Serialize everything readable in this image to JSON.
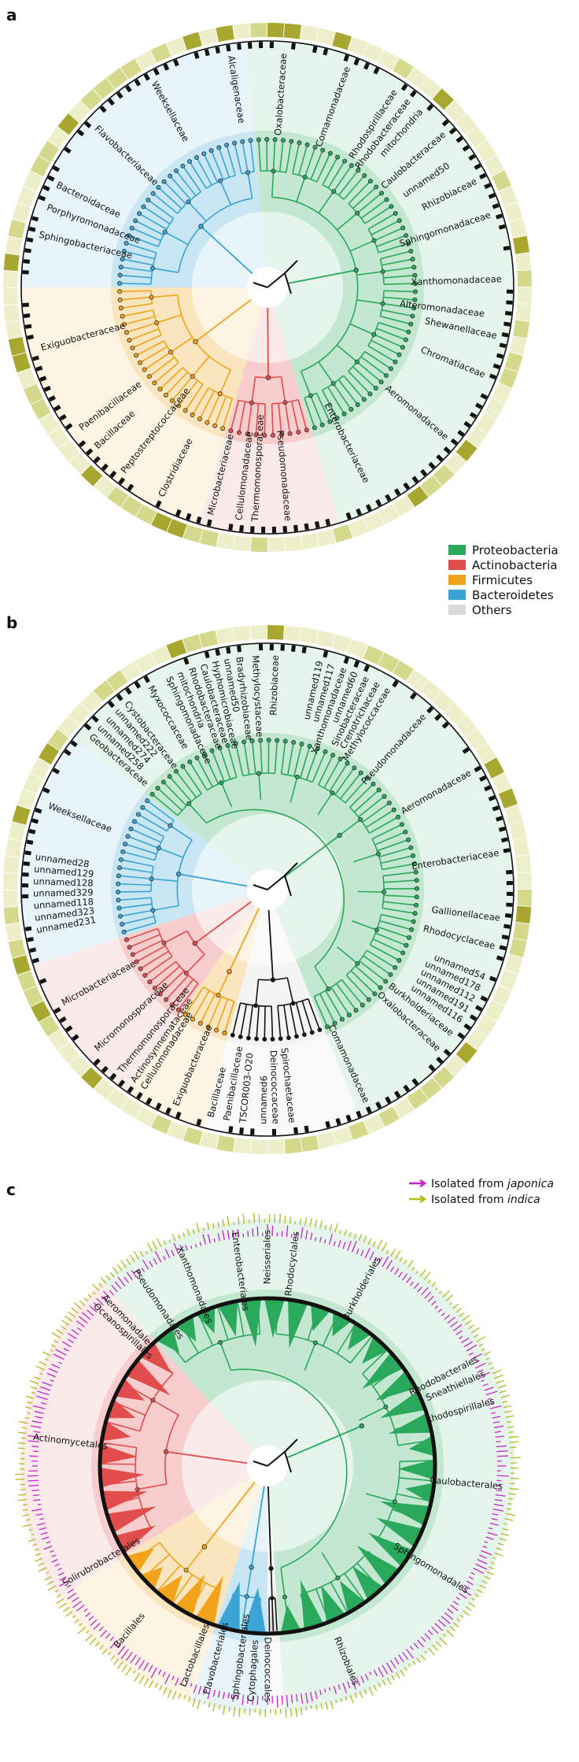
{
  "colors": {
    "Proteobacteria": "#2aa85c",
    "Actinobacteria": "#e14c4c",
    "Firmicutes": "#f2a31a",
    "Bacteroidetes": "#3aa4d4",
    "Others": "#d9d9d9",
    "japonica": "#cc22cc",
    "indica": "#b8b820",
    "ring_dark": "#a8a830",
    "ring_light": "#ecefc9"
  },
  "legend": {
    "items": [
      {
        "label": "Proteobacteria",
        "color": "#2aa85c"
      },
      {
        "label": "Actinobacteria",
        "color": "#e14c4c"
      },
      {
        "label": "Firmicutes",
        "color": "#f2a31a"
      },
      {
        "label": "Bacteroidetes",
        "color": "#3aa4d4"
      },
      {
        "label": "Others",
        "color": "#d9d9d9"
      }
    ]
  },
  "legend_c": {
    "prefix": "Isolated from ",
    "items": [
      {
        "label": "japonica",
        "color": "#cc22cc"
      },
      {
        "label": "indica",
        "color": "#b8b820"
      }
    ]
  },
  "panels": [
    {
      "letter": "a",
      "sectors": [
        {
          "phylum": "Proteobacteria",
          "start": -5,
          "end": 163
        },
        {
          "phylum": "Actinobacteria",
          "start": 163,
          "end": 196
        },
        {
          "phylum": "Firmicutes",
          "start": 196,
          "end": 270
        },
        {
          "phylum": "Bacteroidetes",
          "start": 270,
          "end": 355
        }
      ],
      "labels": [
        {
          "text": "Oxalobacteraceae",
          "angle": 4
        },
        {
          "text": "Comamonadaceae",
          "angle": 20
        },
        {
          "text": "Rhodospirillaceae",
          "angle": 33
        },
        {
          "text": "Rhodobacteraceae",
          "angle": 37
        },
        {
          "text": "mitochondria",
          "angle": 41
        },
        {
          "text": "Caulobacteraceae",
          "angle": 49
        },
        {
          "text": "unnamed50",
          "angle": 56
        },
        {
          "text": "Rhizobiaceae",
          "angle": 63
        },
        {
          "text": "Sphingomonadaceae",
          "angle": 72
        },
        {
          "text": "Xanthomonadaceae",
          "angle": 88
        },
        {
          "text": "Alteromonadaceae",
          "angle": 97
        },
        {
          "text": "Shewanellaceae",
          "angle": 102
        },
        {
          "text": "Chromatiaceae",
          "angle": 112
        },
        {
          "text": "Aeromonadaceae",
          "angle": 130
        },
        {
          "text": "Enterobacteriaceae",
          "angle": 153
        },
        {
          "text": "Pseudomonadaceae",
          "angle": 175
        },
        {
          "text": "Thermomonosporaceae",
          "angle": 183
        },
        {
          "text": "Cellulomonadaceae",
          "angle": 187
        },
        {
          "text": "Microbacteriaceae",
          "angle": 194
        },
        {
          "text": "Clostridiaceae",
          "angle": 207
        },
        {
          "text": "Peptostreptococcaceae",
          "angle": 218
        },
        {
          "text": "Bacillaceae",
          "angle": 227
        },
        {
          "text": "Paenibacillaceae",
          "angle": 233
        },
        {
          "text": "Exiguobacteraceae",
          "angle": 255
        },
        {
          "text": "Sphingobacteriaceae",
          "angle": 283
        },
        {
          "text": "Porphyromonadaceae",
          "angle": 290
        },
        {
          "text": "Bacteroidaceae",
          "angle": 296
        },
        {
          "text": "Flavobacteriaceae",
          "angle": 313
        },
        {
          "text": "Weeksellaceae",
          "angle": 331
        },
        {
          "text": "Alcaligenaceae",
          "angle": 351
        }
      ]
    },
    {
      "letter": "b",
      "sectors": [
        {
          "phylum": "Proteobacteria",
          "start": -52,
          "end": 158
        },
        {
          "phylum": "Others",
          "start": 158,
          "end": 195
        },
        {
          "phylum": "Firmicutes",
          "start": 195,
          "end": 215
        },
        {
          "phylum": "Actinobacteria",
          "start": 215,
          "end": 252
        },
        {
          "phylum": "Bacteroidetes",
          "start": 252,
          "end": 308
        }
      ],
      "labels": [
        {
          "text": "Rhizobiaceae",
          "angle": 2
        },
        {
          "text": "unnamed119",
          "angle": 13
        },
        {
          "text": "unnamed117",
          "angle": 16
        },
        {
          "text": "Xanthomonadaceae",
          "angle": 19
        },
        {
          "text": "unnamed60",
          "angle": 22
        },
        {
          "text": "Sinobacteraceae",
          "angle": 25
        },
        {
          "text": "Crenotrichaceae",
          "angle": 28
        },
        {
          "text": "Methylococcaceae",
          "angle": 31
        },
        {
          "text": "Pseudomonadaceae",
          "angle": 42
        },
        {
          "text": "Aeromonadaceae",
          "angle": 60
        },
        {
          "text": "Enterobacteriaceae",
          "angle": 81
        },
        {
          "text": "Gallionellaceae",
          "angle": 97
        },
        {
          "text": "Rhodocyclaceae",
          "angle": 104
        },
        {
          "text": "unnamed54",
          "angle": 112
        },
        {
          "text": "unnamed178",
          "angle": 115
        },
        {
          "text": "unnamed112",
          "angle": 118
        },
        {
          "text": "unnamed191",
          "angle": 121
        },
        {
          "text": "unnamed116",
          "angle": 124
        },
        {
          "text": "Burkholderiaceae",
          "angle": 128
        },
        {
          "text": "Oxalobacteraceae",
          "angle": 133
        },
        {
          "text": "Comamonadaceae",
          "angle": 155
        },
        {
          "text": "Spirochaetaceae",
          "angle": 174
        },
        {
          "text": "Deinococcaceae",
          "angle": 178
        },
        {
          "text": "unnamed6",
          "angle": 181
        },
        {
          "text": "TSCOR003-O20",
          "angle": 186
        },
        {
          "text": "Paenibacillaceae",
          "angle": 190
        },
        {
          "text": "Bacillaceae",
          "angle": 194
        },
        {
          "text": "Exiguobacteraceae",
          "angle": 203
        },
        {
          "text": "Cellulomonadaceae",
          "angle": 212
        },
        {
          "text": "Actinosynnemataceae",
          "angle": 215
        },
        {
          "text": "Thermomonosporaceae",
          "angle": 219
        },
        {
          "text": "Micromonosporaceae",
          "angle": 227
        },
        {
          "text": "Microbacteriaceae",
          "angle": 241
        },
        {
          "text": "unnamed231",
          "angle": 260
        },
        {
          "text": "unnamed323",
          "angle": 263
        },
        {
          "text": "unnamed118",
          "angle": 266
        },
        {
          "text": "unnamed329",
          "angle": 269
        },
        {
          "text": "unnamed128",
          "angle": 272
        },
        {
          "text": "unnamed129",
          "angle": 275
        },
        {
          "text": "unnamed28",
          "angle": 278
        },
        {
          "text": "Weeksellaceae",
          "angle": 291
        },
        {
          "text": "Geobacteraceae",
          "angle": 311
        },
        {
          "text": "unnamed258",
          "angle": 314
        },
        {
          "text": "unnamed274",
          "angle": 317
        },
        {
          "text": "unnamed222",
          "angle": 320
        },
        {
          "text": "Cystobacteraceae",
          "angle": 323
        },
        {
          "text": "Myxococcaceae",
          "angle": 330
        },
        {
          "text": "Sphingomonadaceae",
          "angle": 335
        },
        {
          "text": "mitochondria",
          "angle": 338
        },
        {
          "text": "Rhodobacteraceae",
          "angle": 341
        },
        {
          "text": "Caulobacteraceae",
          "angle": 344
        },
        {
          "text": "Hyphomicrobiaceae",
          "angle": 347
        },
        {
          "text": "unnamed50",
          "angle": 350
        },
        {
          "text": "Bradyrhizobiaceae",
          "angle": 353
        },
        {
          "text": "Methylocystaceae",
          "angle": 357
        }
      ]
    },
    {
      "letter": "c",
      "sectors": [
        {
          "phylum": "Proteobacteria",
          "start": -42,
          "end": 176
        },
        {
          "phylum": "Others",
          "start": 176,
          "end": 180
        },
        {
          "phylum": "Bacteroidetes",
          "start": 180,
          "end": 198
        },
        {
          "phylum": "Firmicutes",
          "start": 198,
          "end": 238
        },
        {
          "phylum": "Actinobacteria",
          "start": 238,
          "end": 318
        }
      ],
      "labels": [
        {
          "text": "Neisseriales",
          "angle": 0
        },
        {
          "text": "Rhodocyclales",
          "angle": 7
        },
        {
          "text": "Burkholderiales",
          "angle": 28
        },
        {
          "text": "Rhodobacterales",
          "angle": 63
        },
        {
          "text": "Sneathiellales",
          "angle": 67
        },
        {
          "text": "Rhodospirillales",
          "angle": 74
        },
        {
          "text": "Caulobacterales",
          "angle": 95
        },
        {
          "text": "Sphingomonadales",
          "angle": 122
        },
        {
          "text": "Rhizobiales",
          "angle": 158
        },
        {
          "text": "Deinococcales",
          "angle": 180
        },
        {
          "text": "Cytophagales",
          "angle": 184
        },
        {
          "text": "Sphingobacteriales",
          "angle": 188
        },
        {
          "text": "Flavobacteriales",
          "angle": 195
        },
        {
          "text": "Lactobacillales",
          "angle": 201
        },
        {
          "text": "Bacillales",
          "angle": 220
        },
        {
          "text": "Solirubrobacterales",
          "angle": 240
        },
        {
          "text": "Actinomycetales",
          "angle": 277
        },
        {
          "text": "Oceanospirillales",
          "angle": 313
        },
        {
          "text": "Aeromonadales",
          "angle": 316
        },
        {
          "text": "Pseudomonadales",
          "angle": 326
        },
        {
          "text": "Xanthomonadales",
          "angle": 338
        },
        {
          "text": "Enterobacteriales",
          "angle": 352
        }
      ]
    }
  ]
}
